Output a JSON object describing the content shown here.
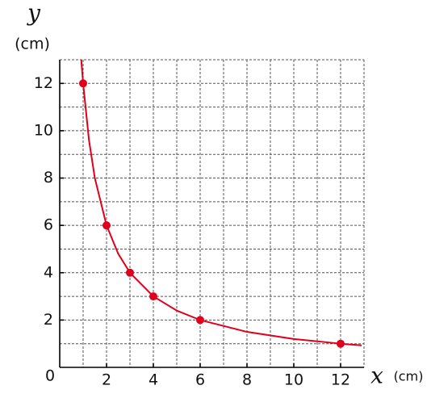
{
  "chart_data": {
    "type": "scatter",
    "y_label": "y",
    "y_unit": "(cm)",
    "x_label": "x",
    "x_unit": "(cm)",
    "origin_label": "0",
    "xlim": [
      0,
      13
    ],
    "ylim": [
      0,
      13
    ],
    "xticks": [
      2,
      4,
      6,
      8,
      10,
      12
    ],
    "yticks": [
      2,
      4,
      6,
      8,
      10,
      12
    ],
    "grid": true,
    "grid_step": 1,
    "curve": {
      "color": "#e0001b",
      "x": [
        0.92,
        1,
        1.25,
        1.5,
        2,
        2.5,
        3,
        4,
        5,
        6,
        8,
        10,
        12,
        12.9
      ],
      "values": [
        13,
        12,
        9.6,
        8,
        6,
        4.8,
        4,
        3,
        2.4,
        2,
        1.5,
        1.2,
        1,
        0.93
      ]
    },
    "series": [
      {
        "color": "#e0001b",
        "x": [
          1,
          2,
          3,
          4,
          6,
          12
        ],
        "values": [
          12,
          6,
          4,
          3,
          2,
          1
        ]
      }
    ]
  }
}
